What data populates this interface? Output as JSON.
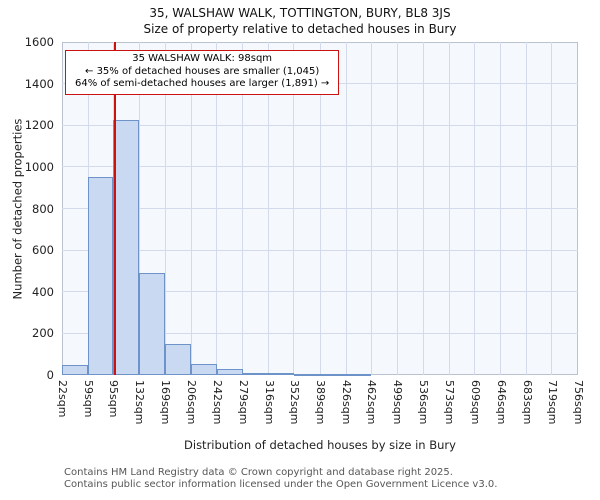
{
  "page": {
    "title": "35, WALSHAW WALK, TOTTINGTON, BURY, BL8 3JS",
    "subtitle": "Size of property relative to detached houses in Bury"
  },
  "annotation": {
    "line1": "35 WALSHAW WALK: 98sqm",
    "line2": "← 35% of detached houses are smaller (1,045)",
    "line3": "64% of semi-detached houses are larger (1,891) →"
  },
  "footer": {
    "line1": "Contains HM Land Registry data © Crown copyright and database right 2025.",
    "line2": "Contains public sector information licensed under the Open Government Licence v3.0."
  },
  "chart_data": {
    "type": "bar",
    "title": "35, WALSHAW WALK, TOTTINGTON, BURY, BL8 3JS — Size of property relative to detached houses in Bury",
    "xlabel": "Distribution of detached houses by size in Bury",
    "ylabel": "Number of detached properties",
    "bin_edges_sqm": [
      22,
      59,
      95,
      132,
      169,
      206,
      242,
      279,
      316,
      352,
      389,
      426,
      462,
      499,
      536,
      573,
      609,
      646,
      683,
      719,
      756
    ],
    "x_tick_labels": [
      "22sqm",
      "59sqm",
      "95sqm",
      "132sqm",
      "169sqm",
      "206sqm",
      "242sqm",
      "279sqm",
      "316sqm",
      "352sqm",
      "389sqm",
      "426sqm",
      "462sqm",
      "499sqm",
      "536sqm",
      "573sqm",
      "609sqm",
      "646sqm",
      "683sqm",
      "719sqm",
      "756sqm"
    ],
    "values": [
      50,
      950,
      1225,
      490,
      150,
      55,
      28,
      10,
      12,
      6,
      5,
      4,
      0,
      0,
      0,
      0,
      0,
      0,
      0,
      0
    ],
    "y_ticks": [
      0,
      200,
      400,
      600,
      800,
      1000,
      1200,
      1400,
      1600
    ],
    "ylim": [
      0,
      1600
    ],
    "grid": true,
    "marker": {
      "label": "35 WALSHAW WALK",
      "value_sqm": 98,
      "color": "#cc1111"
    },
    "colors": {
      "bar_fill": "#c9d9f1",
      "bar_border": "#6e93c8",
      "grid": "#d3daeb",
      "plot_bg": "#f5f8fd",
      "red_line": "#cc1111"
    }
  }
}
